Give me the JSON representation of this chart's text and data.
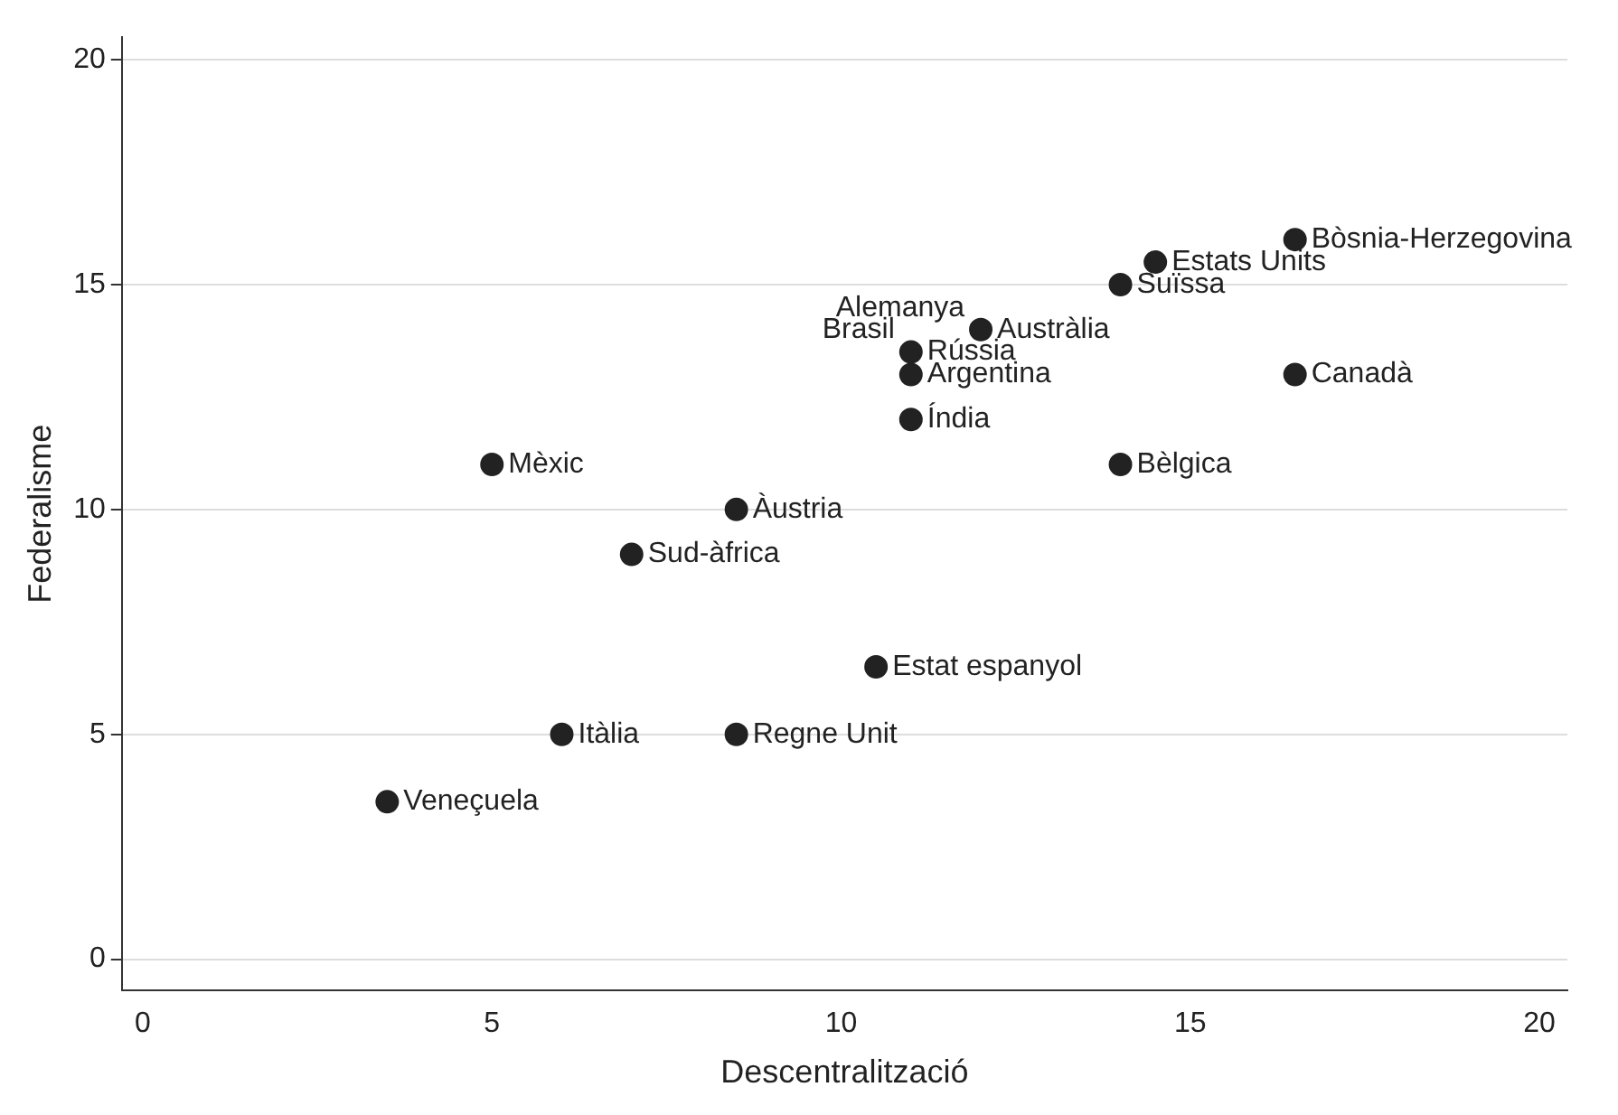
{
  "chart_data": {
    "type": "scatter",
    "xlabel": "Descentralització",
    "ylabel": "Federalisme",
    "x": [
      16.5,
      14.5,
      14,
      12,
      11,
      11,
      11,
      16.5,
      14,
      5,
      8.5,
      7,
      10.5,
      6,
      8.5,
      3.5
    ],
    "series": [
      {
        "color": "#222222",
        "values": [
          16,
          15.5,
          15,
          14,
          13.5,
          13,
          12,
          13,
          11,
          11,
          10,
          9,
          6.5,
          5,
          5,
          3.5
        ]
      }
    ],
    "annotations": [
      {
        "text": "Bòsnia-Herzegovina",
        "x": 16.5,
        "y": 16
      },
      {
        "text": "Estats Units",
        "x": 14.5,
        "y": 15.5
      },
      {
        "text": "Suïssa",
        "x": 14,
        "y": 15
      },
      {
        "text": "Austràlia",
        "x": 12,
        "y": 14
      },
      {
        "text": "Alemanya",
        "x": 12,
        "y": 14
      },
      {
        "text": "Rússia",
        "x": 11,
        "y": 13.5
      },
      {
        "text": "Brasil",
        "x": 11,
        "y": 13.5
      },
      {
        "text": "Argentina",
        "x": 11,
        "y": 13
      },
      {
        "text": "Índia",
        "x": 11,
        "y": 12
      },
      {
        "text": "Canadà",
        "x": 16.5,
        "y": 13
      },
      {
        "text": "Bèlgica",
        "x": 14,
        "y": 11
      },
      {
        "text": "Mèxic",
        "x": 5,
        "y": 11
      },
      {
        "text": "Àustria",
        "x": 8.5,
        "y": 10
      },
      {
        "text": "Sud-àfrica",
        "x": 7,
        "y": 9
      },
      {
        "text": "Estat espanyol",
        "x": 10.5,
        "y": 6.5
      },
      {
        "text": "Itàlia",
        "x": 6,
        "y": 5
      },
      {
        "text": "Regne Unit",
        "x": 8.5,
        "y": 5
      },
      {
        "text": "Veneçuela",
        "x": 3.5,
        "y": 3.5
      }
    ],
    "xlim": [
      -0.3,
      20.4
    ],
    "ylim": [
      -0.7,
      20.5
    ],
    "xticks": [
      0,
      5,
      10,
      15,
      20
    ],
    "yticks": [
      0,
      5,
      10,
      15,
      20
    ],
    "grid": "y",
    "marker": "circle"
  }
}
